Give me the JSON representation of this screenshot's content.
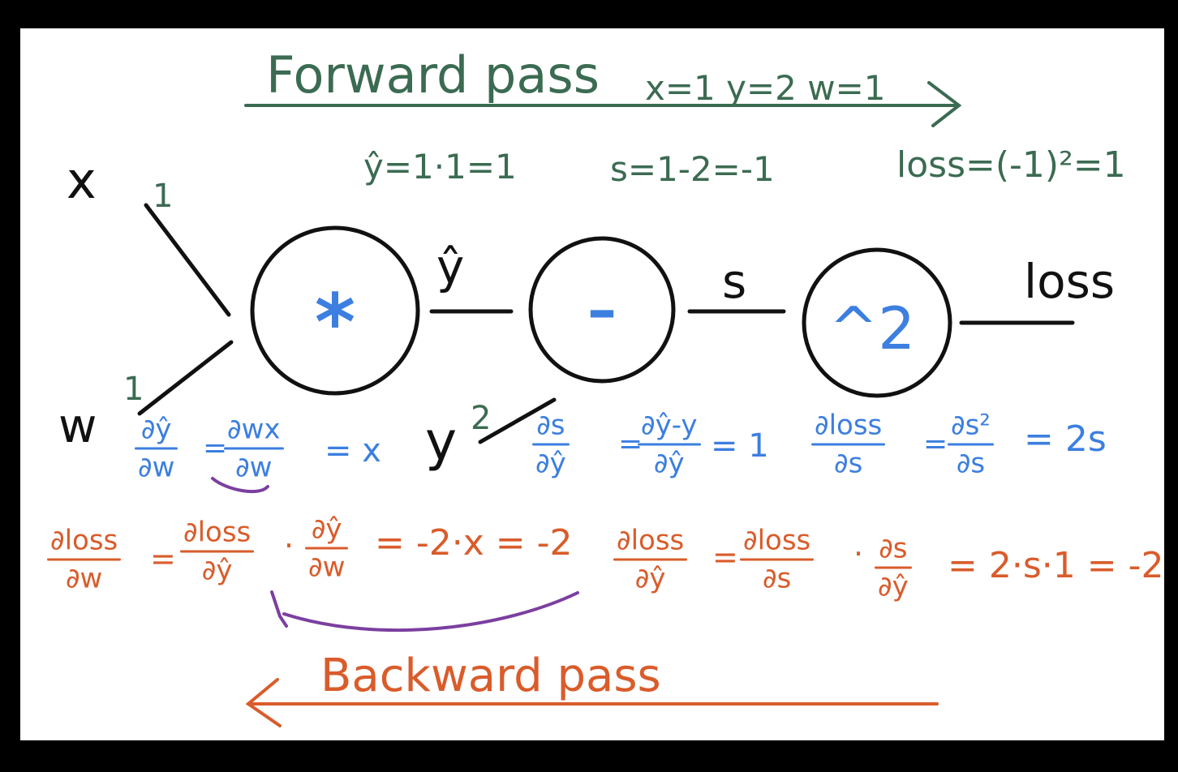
{
  "forward": {
    "title": "Forward pass",
    "vars": "x=1  y=2  w=1",
    "eq_yhat": "ŷ=1·1=1",
    "eq_s": "s=1-2=-1",
    "eq_loss": "loss=(-1)²=1"
  },
  "inputs": {
    "x": "x",
    "w": "w",
    "y": "y",
    "x_val": "1",
    "w_val": "1",
    "y_val": "2"
  },
  "nodes": {
    "mul": "*",
    "sub": "–",
    "sq": "^2"
  },
  "edges": {
    "yhat": "ŷ",
    "s": "s",
    "loss": "loss"
  },
  "local_grads": {
    "g1_num": "∂ŷ",
    "g1_den": "∂w",
    "g1_mid_num": "∂wx",
    "g1_mid_den": "∂w",
    "g1_result": "= x",
    "g2_num": "∂s",
    "g2_den": "∂ŷ",
    "g2_mid_num": "∂ŷ-y",
    "g2_mid_den": "∂ŷ",
    "g2_result": "= 1",
    "g3_num": "∂loss",
    "g3_den": "∂s",
    "g3_mid_num": "∂s²",
    "g3_mid_den": "∂s",
    "g3_result": "= 2s"
  },
  "backward": {
    "title": "Backward pass",
    "c1_num": "∂loss",
    "c1_den": "∂w",
    "c1_a_num": "∂loss",
    "c1_a_den": "∂ŷ",
    "c1_b_num": "∂ŷ",
    "c1_b_den": "∂w",
    "c1_result": "= -2·x = -2",
    "c2_num": "∂loss",
    "c2_den": "∂ŷ",
    "c2_a_num": "∂loss",
    "c2_a_den": "∂s",
    "c2_b_num": "∂s",
    "c2_b_den": "∂ŷ",
    "c2_result": "= 2·s·1 = -2"
  },
  "colors": {
    "forward": "#3b6b52",
    "local": "#3c7fe0",
    "backward": "#d95c2b",
    "link": "#7b3fa0",
    "ink": "#111111"
  }
}
